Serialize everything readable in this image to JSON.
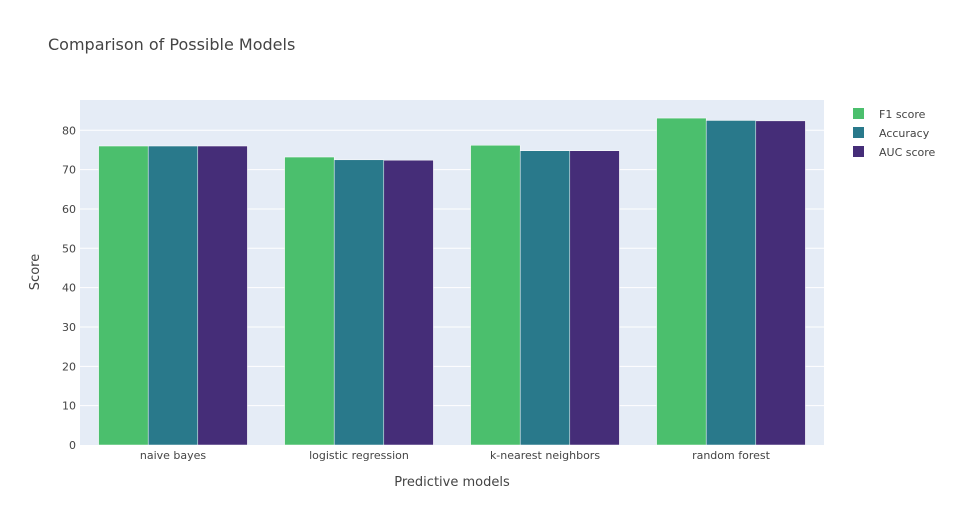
{
  "chart_data": {
    "type": "bar",
    "title": "Comparison of Possible Models",
    "xlabel": "Predictive models",
    "ylabel": "Score",
    "categories": [
      "naive bayes",
      "logistic regression",
      "k-nearest neighbors",
      "random forest"
    ],
    "series": [
      {
        "name": "F1 score",
        "color": "#4bbf6d",
        "values": [
          76.0,
          73.2,
          76.2,
          83.1
        ]
      },
      {
        "name": "Accuracy",
        "color": "#29798b",
        "values": [
          76.0,
          72.5,
          74.8,
          82.5
        ]
      },
      {
        "name": "AUC score",
        "color": "#452d78",
        "values": [
          76.0,
          72.4,
          74.8,
          82.4
        ]
      }
    ],
    "ylim": [
      0,
      87.7
    ],
    "yticks": [
      0,
      10,
      20,
      30,
      40,
      50,
      60,
      70,
      80
    ],
    "grid": true,
    "legend": "right",
    "barmode": "group",
    "plot_bgcolor": "#e5ecf6"
  }
}
